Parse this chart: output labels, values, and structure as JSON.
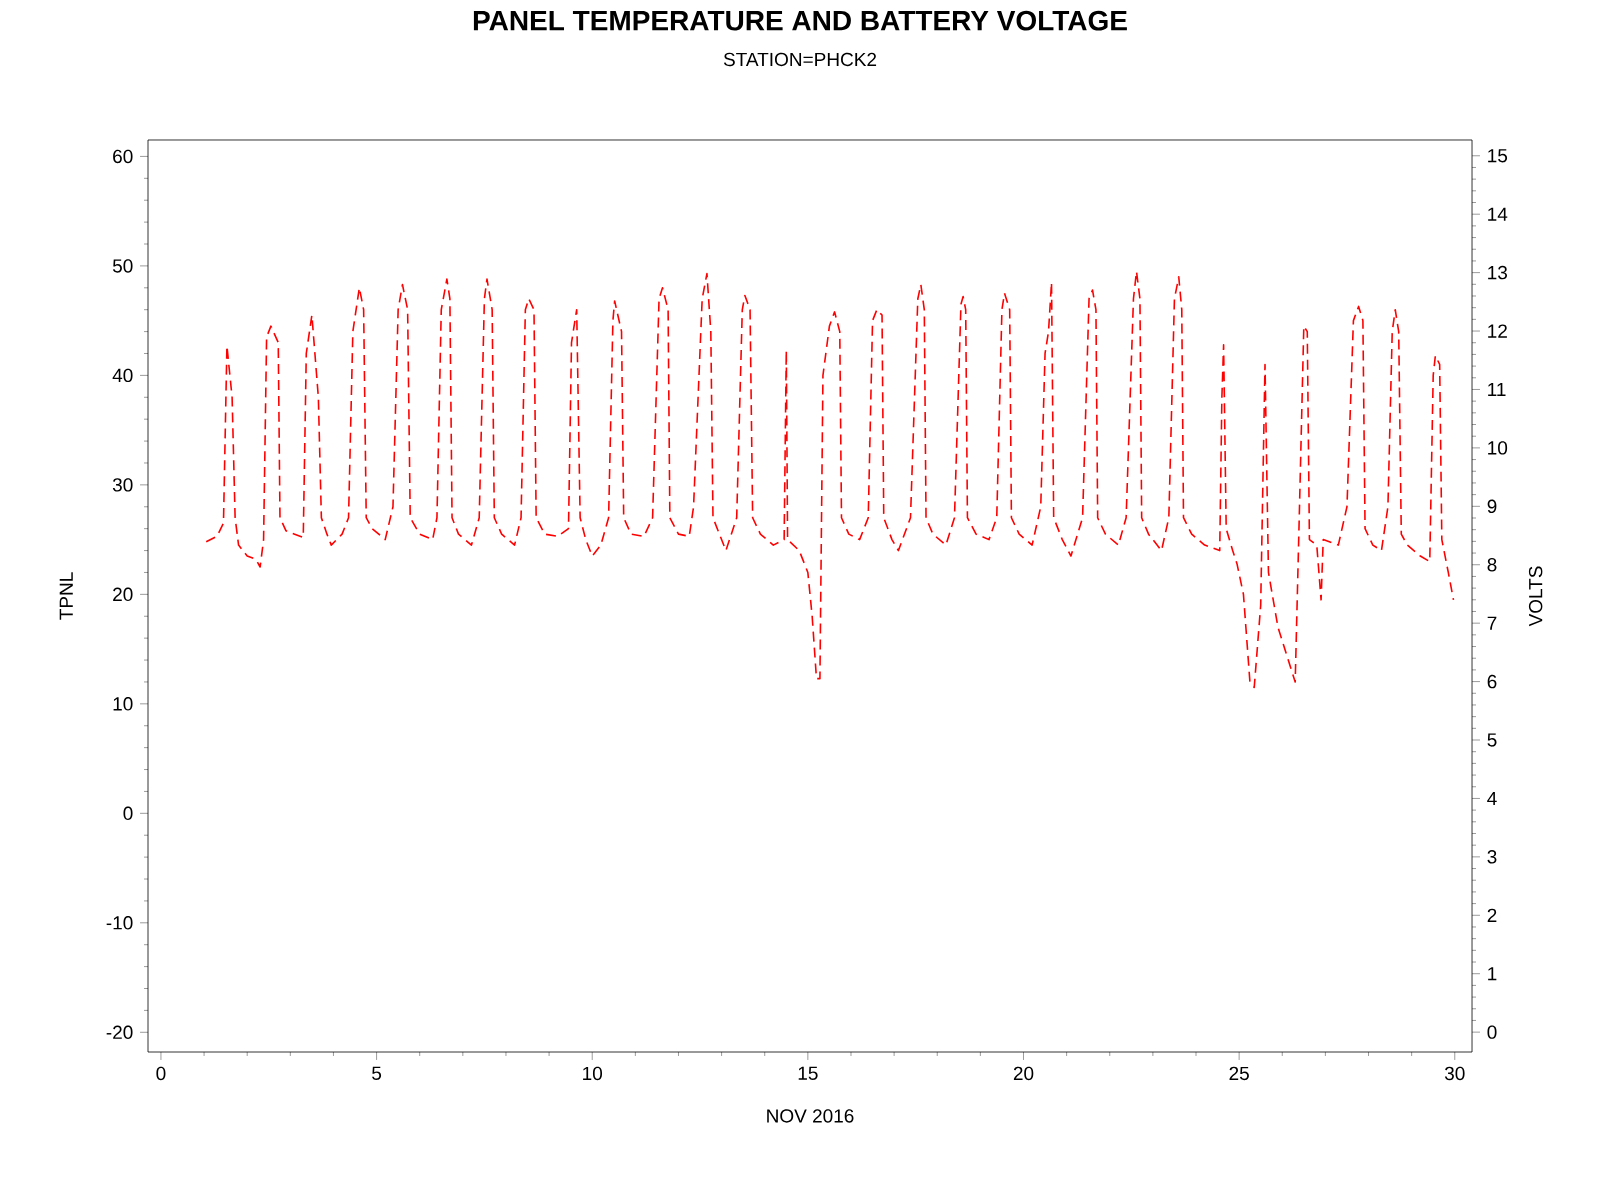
{
  "chart_data": {
    "type": "line",
    "title": "PANEL TEMPERATURE AND BATTERY VOLTAGE",
    "subtitle": "STATION=PHCK2",
    "xlabel": "NOV 2016",
    "ylabel": "TPNL",
    "y2label": "VOLTS",
    "xlim": [
      -0.3,
      30.4
    ],
    "xticks": [
      0,
      5,
      10,
      15,
      20,
      25,
      30
    ],
    "ylim": [
      -21.8,
      61.5
    ],
    "yticks": [
      -20,
      -10,
      0,
      10,
      20,
      30,
      40,
      50,
      60
    ],
    "y2lim": [
      -0.34,
      15.27
    ],
    "y2ticks": [
      0,
      1,
      2,
      3,
      4,
      5,
      6,
      7,
      8,
      9,
      10,
      11,
      12,
      13,
      14,
      15
    ],
    "line_style": "dashed",
    "marker": "none",
    "grid": false,
    "series": [
      {
        "color": "#ff0000",
        "x": [
          1.05,
          1.3,
          1.45,
          1.53,
          1.65,
          1.72,
          1.8,
          2.0,
          2.2,
          2.3,
          2.38,
          2.45,
          2.55,
          2.72,
          2.76,
          2.9,
          3.1,
          3.3,
          3.37,
          3.5,
          3.65,
          3.72,
          3.85,
          3.95,
          4.2,
          4.35,
          4.45,
          4.6,
          4.7,
          4.76,
          4.9,
          5.2,
          5.38,
          5.5,
          5.6,
          5.72,
          5.78,
          6.0,
          6.3,
          6.4,
          6.5,
          6.63,
          6.7,
          6.75,
          6.9,
          7.2,
          7.38,
          7.5,
          7.56,
          7.68,
          7.73,
          7.9,
          8.2,
          8.35,
          8.45,
          8.53,
          8.65,
          8.7,
          8.9,
          9.2,
          9.45,
          9.52,
          9.64,
          9.72,
          9.85,
          10.0,
          10.2,
          10.38,
          10.48,
          10.52,
          10.68,
          10.73,
          10.9,
          11.2,
          11.4,
          11.55,
          11.63,
          11.76,
          11.8,
          12.0,
          12.25,
          12.35,
          12.55,
          12.66,
          12.75,
          12.8,
          12.95,
          13.1,
          13.35,
          13.48,
          13.54,
          13.66,
          13.72,
          13.9,
          14.2,
          14.45,
          14.5,
          14.53,
          14.8,
          15.0,
          15.1,
          15.2,
          15.28,
          15.35,
          15.5,
          15.62,
          15.74,
          15.78,
          15.95,
          16.2,
          16.4,
          16.5,
          16.6,
          16.72,
          16.76,
          16.95,
          17.1,
          17.38,
          17.55,
          17.62,
          17.7,
          17.74,
          17.9,
          18.2,
          18.4,
          18.55,
          18.6,
          18.66,
          18.7,
          18.9,
          19.2,
          19.38,
          19.5,
          19.56,
          19.68,
          19.72,
          19.9,
          20.2,
          20.4,
          20.5,
          20.58,
          20.65,
          20.7,
          20.9,
          21.1,
          21.37,
          21.52,
          21.6,
          21.68,
          21.72,
          21.9,
          22.2,
          22.38,
          22.55,
          22.62,
          22.7,
          22.74,
          22.9,
          23.2,
          23.37,
          23.5,
          23.6,
          23.67,
          23.71,
          23.9,
          24.2,
          24.55,
          24.6,
          24.64,
          24.7,
          24.85,
          24.95,
          25.1,
          25.25,
          25.35,
          25.5,
          25.6,
          25.68,
          25.9,
          26.1,
          26.3,
          26.4,
          26.5,
          26.58,
          26.63,
          26.8,
          26.9,
          26.95,
          27.3,
          27.5,
          27.65,
          27.77,
          27.87,
          27.92,
          28.1,
          28.3,
          28.45,
          28.55,
          28.62,
          28.7,
          28.76,
          28.9,
          29.2,
          29.42,
          29.5,
          29.55,
          29.65,
          29.7,
          29.85,
          29.97
        ],
        "values": [
          24.8,
          25.3,
          26.5,
          42.7,
          38,
          27,
          24.5,
          23.5,
          23.2,
          22.5,
          25,
          43.5,
          44.5,
          43,
          27,
          25.8,
          25.5,
          25.2,
          42,
          45.5,
          38,
          27,
          25.5,
          24.5,
          25.5,
          27,
          44,
          48,
          46,
          27,
          26,
          25,
          28,
          46,
          48.3,
          46,
          27,
          25.5,
          25,
          27,
          46,
          48.8,
          47,
          27,
          25.5,
          24.5,
          27,
          47,
          48.8,
          46,
          27,
          25.5,
          24.5,
          27,
          46,
          47,
          46,
          27,
          25.5,
          25.3,
          26,
          43,
          46,
          27,
          25,
          23.5,
          24.5,
          27,
          45,
          46.8,
          44,
          27,
          25.5,
          25.3,
          27,
          47,
          48,
          46,
          27,
          25.5,
          25.3,
          28,
          47,
          49.3,
          44,
          27,
          25.5,
          24,
          27,
          46,
          47.3,
          46,
          27,
          25.5,
          24.5,
          25,
          42.3,
          25,
          24,
          22,
          18,
          12.3,
          12.3,
          40,
          44.5,
          45.8,
          44,
          27,
          25.5,
          25,
          27,
          45,
          46,
          45.5,
          27,
          25,
          24,
          27,
          47,
          48.3,
          46,
          27,
          25.5,
          24.5,
          27,
          46.5,
          47.2,
          46,
          27,
          25.5,
          25,
          27,
          46,
          47.5,
          46,
          27,
          25.5,
          24.5,
          28,
          42,
          44,
          48.5,
          27,
          25,
          23.5,
          27,
          47,
          47.8,
          46,
          27,
          25.5,
          24.5,
          27,
          47,
          49.5,
          47,
          27,
          25.5,
          24,
          27,
          47,
          49,
          46,
          27,
          25.5,
          24.5,
          24,
          38,
          42.8,
          26,
          24,
          22.8,
          20,
          12,
          11.5,
          19,
          41,
          22,
          17,
          14.5,
          12,
          28,
          44.5,
          44,
          25,
          24.5,
          19.5,
          25,
          24.5,
          28,
          45,
          46.3,
          45,
          26,
          24.5,
          24,
          28,
          44,
          46,
          44,
          25.5,
          24.5,
          23.5,
          23,
          40,
          41.8,
          41,
          25,
          22,
          19.5
        ]
      }
    ]
  }
}
